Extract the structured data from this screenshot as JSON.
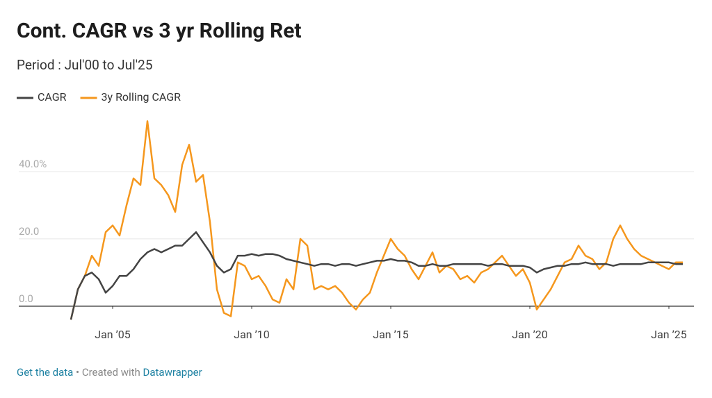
{
  "title": "Cont. CAGR vs 3 yr Rolling Ret",
  "subtitle": "Period : Jul'00 to Jul'25",
  "footer": {
    "link": "Get the data",
    "separator": " • Created with ",
    "credit": "Datawrapper"
  },
  "chart_data": {
    "type": "line",
    "x": [
      2003.5,
      2003.75,
      2004,
      2004.25,
      2004.5,
      2004.75,
      2005,
      2005.25,
      2005.5,
      2005.75,
      2006,
      2006.25,
      2006.5,
      2006.75,
      2007,
      2007.25,
      2007.5,
      2007.75,
      2008,
      2008.25,
      2008.5,
      2008.75,
      2009,
      2009.25,
      2009.5,
      2009.75,
      2010,
      2010.25,
      2010.5,
      2010.75,
      2011,
      2011.25,
      2011.5,
      2011.75,
      2012,
      2012.25,
      2012.5,
      2012.75,
      2013,
      2013.25,
      2013.5,
      2013.75,
      2014,
      2014.25,
      2014.5,
      2014.75,
      2015,
      2015.25,
      2015.5,
      2015.75,
      2016,
      2016.25,
      2016.5,
      2016.75,
      2017,
      2017.25,
      2017.5,
      2017.75,
      2018,
      2018.25,
      2018.5,
      2018.75,
      2019,
      2019.25,
      2019.5,
      2019.75,
      2020,
      2020.25,
      2020.5,
      2020.75,
      2021,
      2021.25,
      2021.5,
      2021.75,
      2022,
      2022.25,
      2022.5,
      2022.75,
      2023,
      2023.25,
      2023.5,
      2023.75,
      2024,
      2024.25,
      2024.5,
      2024.75,
      2025,
      2025.25,
      2025.5
    ],
    "series": [
      {
        "name": "CAGR",
        "color": "#444444",
        "values": [
          -4,
          5,
          9,
          10,
          8,
          4,
          6,
          9,
          9,
          11,
          14,
          16,
          17,
          16,
          17,
          18,
          18,
          20,
          22,
          19,
          16,
          12,
          10,
          11,
          15,
          15,
          15.5,
          15,
          15.5,
          15.5,
          15,
          14,
          13.5,
          13,
          12.5,
          12,
          12.5,
          12.5,
          12,
          12.5,
          12.5,
          12,
          12.5,
          13,
          13.5,
          13.5,
          14,
          13.5,
          13.5,
          13,
          12,
          12,
          12.5,
          12,
          12,
          12.5,
          12.5,
          12.5,
          12.5,
          12.5,
          12,
          12.5,
          12.5,
          12,
          12,
          12,
          11.5,
          10,
          11,
          11.5,
          12,
          12,
          12.5,
          12.5,
          13,
          12.5,
          12.5,
          12.5,
          12,
          12.5,
          12.5,
          12.5,
          12.5,
          13,
          13,
          13,
          13,
          12.5,
          12.5
        ]
      },
      {
        "name": "3y Rolling CAGR",
        "color": "#f5971d",
        "values": [
          -4,
          5,
          9,
          15,
          12,
          22,
          24,
          21,
          30,
          38,
          36,
          55,
          38,
          36,
          33,
          28,
          42,
          48,
          37,
          39,
          25,
          5,
          -2,
          -3,
          13,
          12,
          8,
          9,
          6,
          2,
          1,
          8,
          5,
          20,
          18,
          5,
          6,
          5,
          6,
          4,
          1,
          -1,
          2,
          4,
          10,
          15,
          20,
          17,
          15,
          11,
          8,
          12,
          16,
          10,
          12,
          11,
          8,
          9,
          7,
          10,
          11,
          13,
          15,
          12,
          9,
          11,
          7,
          -1,
          2,
          5,
          9,
          13,
          14,
          18,
          15,
          14,
          11,
          13,
          20,
          24,
          20,
          17,
          15,
          14,
          13,
          12,
          11,
          13,
          13
        ]
      }
    ],
    "xlim": [
      2001.625,
      2025.9
    ],
    "xticks": [
      {
        "value": 2005,
        "label": "Jan ’05"
      },
      {
        "value": 2010,
        "label": "Jan ’10"
      },
      {
        "value": 2015,
        "label": "Jan ’15"
      },
      {
        "value": 2020,
        "label": "Jan ’20"
      },
      {
        "value": 2025,
        "label": "Jan ’25"
      }
    ],
    "ylim": [
      -5,
      55.5
    ],
    "yticks": [
      {
        "value": 0,
        "label": "0.0"
      },
      {
        "value": 20,
        "label": "20.0"
      },
      {
        "value": 40,
        "label": "40.0%"
      }
    ],
    "grid": true
  }
}
